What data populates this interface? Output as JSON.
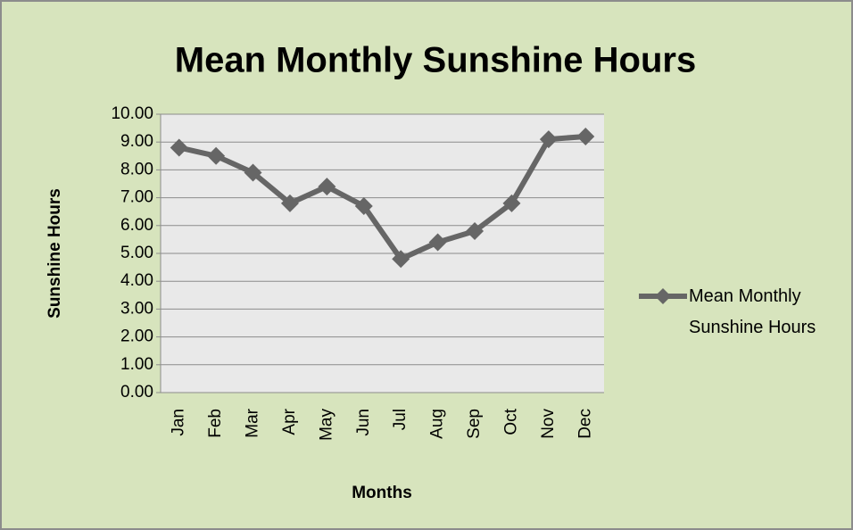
{
  "chart_data": {
    "type": "line",
    "title": "Mean Monthly Sunshine Hours",
    "x_label": "Months",
    "y_label": "Sunshine Hours",
    "categories": [
      "Jan",
      "Feb",
      "Mar",
      "Apr",
      "May",
      "Jun",
      "Jul",
      "Aug",
      "Sep",
      "Oct",
      "Nov",
      "Dec"
    ],
    "series": [
      {
        "name": "Mean Monthly Sunshine Hours",
        "color": "#666666",
        "values": [
          8.8,
          8.5,
          7.9,
          6.8,
          7.4,
          6.7,
          4.8,
          5.4,
          5.8,
          6.8,
          9.1,
          9.2
        ]
      }
    ],
    "ylim": [
      0,
      10
    ],
    "yticks": [
      {
        "value": 0,
        "label": "0.00"
      },
      {
        "value": 1,
        "label": "1.00"
      },
      {
        "value": 2,
        "label": "2.00"
      },
      {
        "value": 3,
        "label": "3.00"
      },
      {
        "value": 4,
        "label": "4.00"
      },
      {
        "value": 5,
        "label": "5.00"
      },
      {
        "value": 6,
        "label": "6.00"
      },
      {
        "value": 7,
        "label": "7.00"
      },
      {
        "value": 8,
        "label": "8.00"
      },
      {
        "value": 9,
        "label": "9.00"
      },
      {
        "value": 10,
        "label": "10.00"
      }
    ],
    "grid": true,
    "legend": "right"
  }
}
